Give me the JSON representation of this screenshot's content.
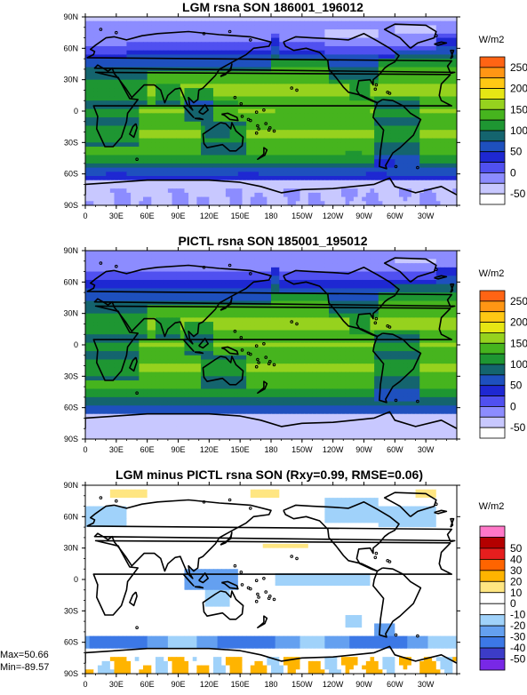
{
  "chart_data": [
    {
      "type": "heatmap",
      "title": "LGM rsna SON 186001_196012",
      "unit_label": "W/m2",
      "x_ticks": [
        "0",
        "30E",
        "60E",
        "90E",
        "120E",
        "150E",
        "180",
        "150W",
        "120W",
        "90W",
        "60W",
        "30W"
      ],
      "y_ticks": [
        "90N",
        "60N",
        "30N",
        "0",
        "30S",
        "60S",
        "90S"
      ],
      "colorbar_levels": [
        -50,
        -25,
        0,
        25,
        50,
        75,
        100,
        125,
        150,
        175,
        200,
        225,
        250
      ],
      "colorbar_labels": [
        "250",
        "200",
        "150",
        "100",
        "50",
        "0",
        "-50"
      ],
      "colors": [
        "#ffffff",
        "#c8c8ff",
        "#8c8cff",
        "#5050f0",
        "#1e28d2",
        "#1e50be",
        "#14646e",
        "#1e9632",
        "#46b41e",
        "#96d21e",
        "#e6e614",
        "#ffc814",
        "#ff9614",
        "#ff6414"
      ],
      "scenario": "lgm"
    },
    {
      "type": "heatmap",
      "title": "PICTL rsna SON 185001_195012",
      "unit_label": "W/m2",
      "x_ticks": [
        "0",
        "30E",
        "60E",
        "90E",
        "120E",
        "150E",
        "180",
        "150W",
        "120W",
        "90W",
        "60W",
        "30W"
      ],
      "y_ticks": [
        "90N",
        "60N",
        "30N",
        "0",
        "30S",
        "60S",
        "90S"
      ],
      "colorbar_levels": [
        -50,
        -25,
        0,
        25,
        50,
        75,
        100,
        125,
        150,
        175,
        200,
        225,
        250
      ],
      "colorbar_labels": [
        "250",
        "200",
        "150",
        "100",
        "50",
        "0",
        "-50"
      ],
      "colors": [
        "#ffffff",
        "#c8c8ff",
        "#8c8cff",
        "#5050f0",
        "#1e28d2",
        "#1e50be",
        "#14646e",
        "#1e9632",
        "#46b41e",
        "#96d21e",
        "#e6e614",
        "#ffc814",
        "#ff9614",
        "#ff6414"
      ],
      "scenario": "pi"
    },
    {
      "type": "heatmap",
      "title": "LGM minus PICTL rsna SON (Rxy=0.99, RMSE=0.06)",
      "unit_label": "W/m2",
      "x_ticks": [
        "0",
        "30E",
        "60E",
        "90E",
        "120E",
        "150E",
        "180",
        "150W",
        "120W",
        "90W",
        "60W",
        "30W"
      ],
      "y_ticks": [
        "90N",
        "60N",
        "30N",
        "0",
        "30S",
        "60S",
        "90S"
      ],
      "colorbar_levels": [
        -50,
        -40,
        -30,
        -20,
        -10,
        0,
        10,
        20,
        30,
        40,
        50
      ],
      "colorbar_labels": [
        "50",
        "40",
        "30",
        "20",
        "10",
        "0",
        "-10",
        "-20",
        "-30",
        "-40",
        "-50"
      ],
      "colors": [
        "#7828e6",
        "#3c3cc8",
        "#3c78e6",
        "#64a0f0",
        "#a0d2fa",
        "#ffffff",
        "#ffffff",
        "#ffe682",
        "#ffb400",
        "#ff6400",
        "#e61e1e",
        "#b40000",
        "#ff78c8"
      ],
      "max_label": "Max=50.66",
      "min_label": "Min=-89.57",
      "scenario": "diff"
    }
  ]
}
